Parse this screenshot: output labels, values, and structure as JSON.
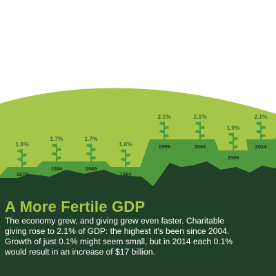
{
  "chart_data": {
    "type": "line",
    "title": "A More Fertile GDP",
    "categories": [
      "1979",
      "1984",
      "1989",
      "1994",
      "1999",
      "2004",
      "2009",
      "2014"
    ],
    "values": [
      1.6,
      1.7,
      1.7,
      1.6,
      2.1,
      2.1,
      1.9,
      2.1
    ],
    "value_labels": [
      "1.6%",
      "1.7%",
      "1.7%",
      "1.6%",
      "2.1%",
      "2.1%",
      "1.9%",
      "2.1%"
    ],
    "ylim": [
      1.5,
      2.2
    ],
    "grid": false,
    "legend": "none"
  },
  "article": {
    "headline": "A More Fertile GDP",
    "body_lines": [
      "The economy grew, and giving grew even faster. Charitable",
      "giving rose to 2.1% of GDP: the highest it’s been since 2004.",
      "Growth of just 0.1% might seem small, but in 2014 each 0.1%",
      "would result in an increase of $17 billion."
    ]
  },
  "colors": {
    "background": "#ffffff",
    "sky_band": "#a6c64a",
    "hill_light": "#4f9a3f",
    "hill_dark": "#21402a",
    "plant": "#4f9a3f",
    "label": "#2e6a32",
    "year": "#1c2a1c",
    "headline": "#a6c64a",
    "body_text": "#ffffff"
  }
}
